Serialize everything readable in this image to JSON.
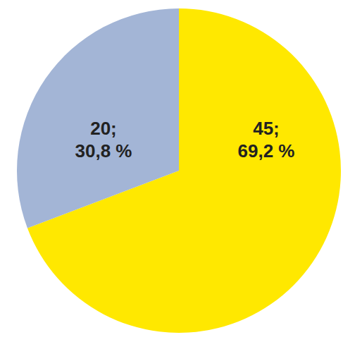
{
  "chart_data": {
    "type": "pie",
    "categories": [
      null,
      null
    ],
    "values": [
      45,
      20
    ],
    "value_labels": [
      "45;",
      "20;"
    ],
    "percent_labels": [
      "69,2 %",
      "30,8 %"
    ],
    "colors": [
      "#ffe800",
      "#a3b5d6"
    ],
    "data_labels": true
  }
}
